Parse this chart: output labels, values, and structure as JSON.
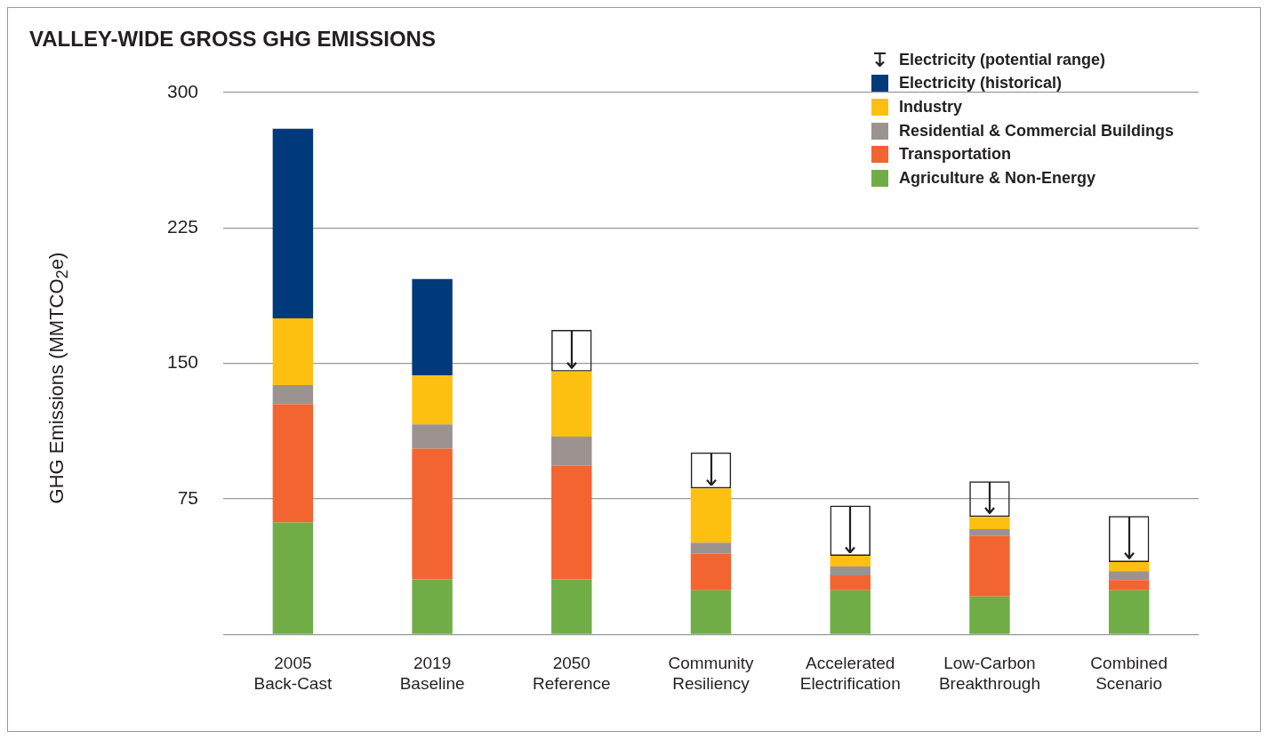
{
  "chart_data": {
    "type": "bar",
    "title": "VALLEY-WIDE GROSS GHG EMISSIONS",
    "ylabel": "GHG Emissions (MMTCO$_{2}$e)",
    "categories": [
      "2005 Back-Cast",
      "2019 Baseline",
      "2050 Reference",
      "Community Resiliency",
      "Accelerated Electrification",
      "Low-Carbon Breakthrough",
      "Combined Scenario"
    ],
    "stacked": true,
    "ylim": [
      0,
      300
    ],
    "yticks": [
      {
        "value": 0,
        "label": null
      },
      75,
      150,
      225,
      300
    ],
    "grid": "y",
    "legend": "top right",
    "series": [
      {
        "name": "Agriculture & Non-Energy",
        "color": "#70ad47",
        "values": [
          62,
          30.5,
          30.5,
          24.4,
          24.4,
          21,
          24.4
        ]
      },
      {
        "name": "Transportation",
        "color": "#f26430",
        "values": [
          65.4,
          72.4,
          63,
          20.4,
          8.3,
          33.5,
          5.7
        ]
      },
      {
        "name": "Residential & Commercial Buildings",
        "color": "#9c9391",
        "values": [
          10.6,
          13.3,
          16,
          6,
          4.9,
          3.8,
          4.9
        ]
      },
      {
        "name": "Industry",
        "color": "#fdc010",
        "values": [
          37,
          27.3,
          36,
          30,
          5.9,
          6.8,
          5.1
        ]
      },
      {
        "name": "Electricity (historical)",
        "color": "#003a7b",
        "values": [
          105,
          53.2,
          null,
          null,
          null,
          null,
          null
        ]
      },
      {
        "name": "Electricity (potential range)",
        "color": "#231f20",
        "base": [
          null,
          null,
          145.5,
          80.8,
          43.5,
          65.1,
          40.1
        ],
        "values": [
          null,
          null,
          23,
          20,
          27.8,
          19.7,
          25.5
        ]
      }
    ]
  }
}
